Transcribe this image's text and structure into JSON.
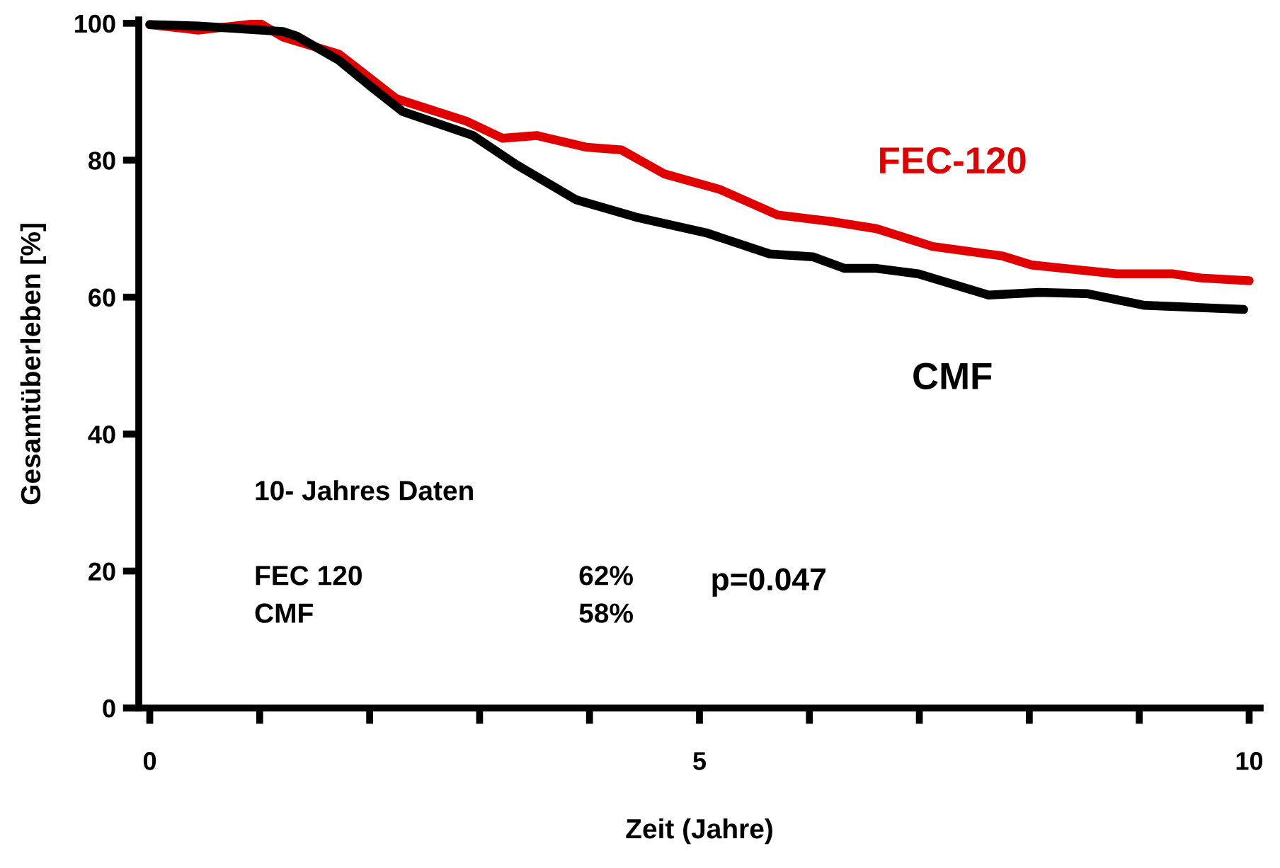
{
  "chart_data": {
    "type": "line",
    "xlabel": "Zeit (Jahre)",
    "ylabel": "Gesamtüberleben [%]",
    "xlim": [
      -0.1,
      10.1
    ],
    "ylim": [
      0,
      100.5
    ],
    "xticks": [
      0,
      {
        "value": 1,
        "label": null
      },
      {
        "value": 2,
        "label": null
      },
      {
        "value": 3,
        "label": null
      },
      {
        "value": 4,
        "label": null
      },
      5,
      {
        "value": 6,
        "label": null
      },
      {
        "value": 7,
        "label": null
      },
      {
        "value": 8,
        "label": null
      },
      {
        "value": 9,
        "label": null
      },
      10
    ],
    "yticks": [
      0,
      20,
      40,
      60,
      80,
      100
    ],
    "grid": false,
    "legend": false,
    "marker": "none",
    "line_style": "solid",
    "series": [
      {
        "name": "FEC-120",
        "color": "#e00000",
        "x": [
          0,
          0.44,
          1.0,
          1.21,
          1.72,
          2.24,
          2.88,
          3.21,
          3.52,
          3.97,
          4.29,
          4.68,
          5.19,
          5.71,
          6.22,
          6.61,
          7.12,
          7.76,
          8.02,
          8.79,
          9.31,
          9.56,
          10
        ],
        "values": [
          99.8,
          99,
          100,
          98,
          95.5,
          89,
          85.7,
          83.2,
          83.6,
          81.9,
          81.5,
          78,
          75.7,
          72,
          71,
          70,
          67.4,
          66,
          64.7,
          63.4,
          63.4,
          62.8,
          62.4
        ]
      },
      {
        "name": "CMF",
        "color": "#000000",
        "x": [
          0,
          0.44,
          1.21,
          1.34,
          1.72,
          2.0,
          2.3,
          2.94,
          3.33,
          3.88,
          4.42,
          5.06,
          5.64,
          6.03,
          6.32,
          6.61,
          6.99,
          7.63,
          8.09,
          8.53,
          9.05,
          9.95
        ],
        "values": [
          99.8,
          99.6,
          98.8,
          98.1,
          94.6,
          90.9,
          87.1,
          83.6,
          79.4,
          74.2,
          71.7,
          69.4,
          66.3,
          65.9,
          64.2,
          64.2,
          63.4,
          60.3,
          60.7,
          60.5,
          58.8,
          58.2
        ]
      }
    ],
    "annotations": [
      "10- Jahres Daten",
      "FEC 120",
      "62%",
      "CMF",
      "58%",
      "p=0.047"
    ]
  }
}
